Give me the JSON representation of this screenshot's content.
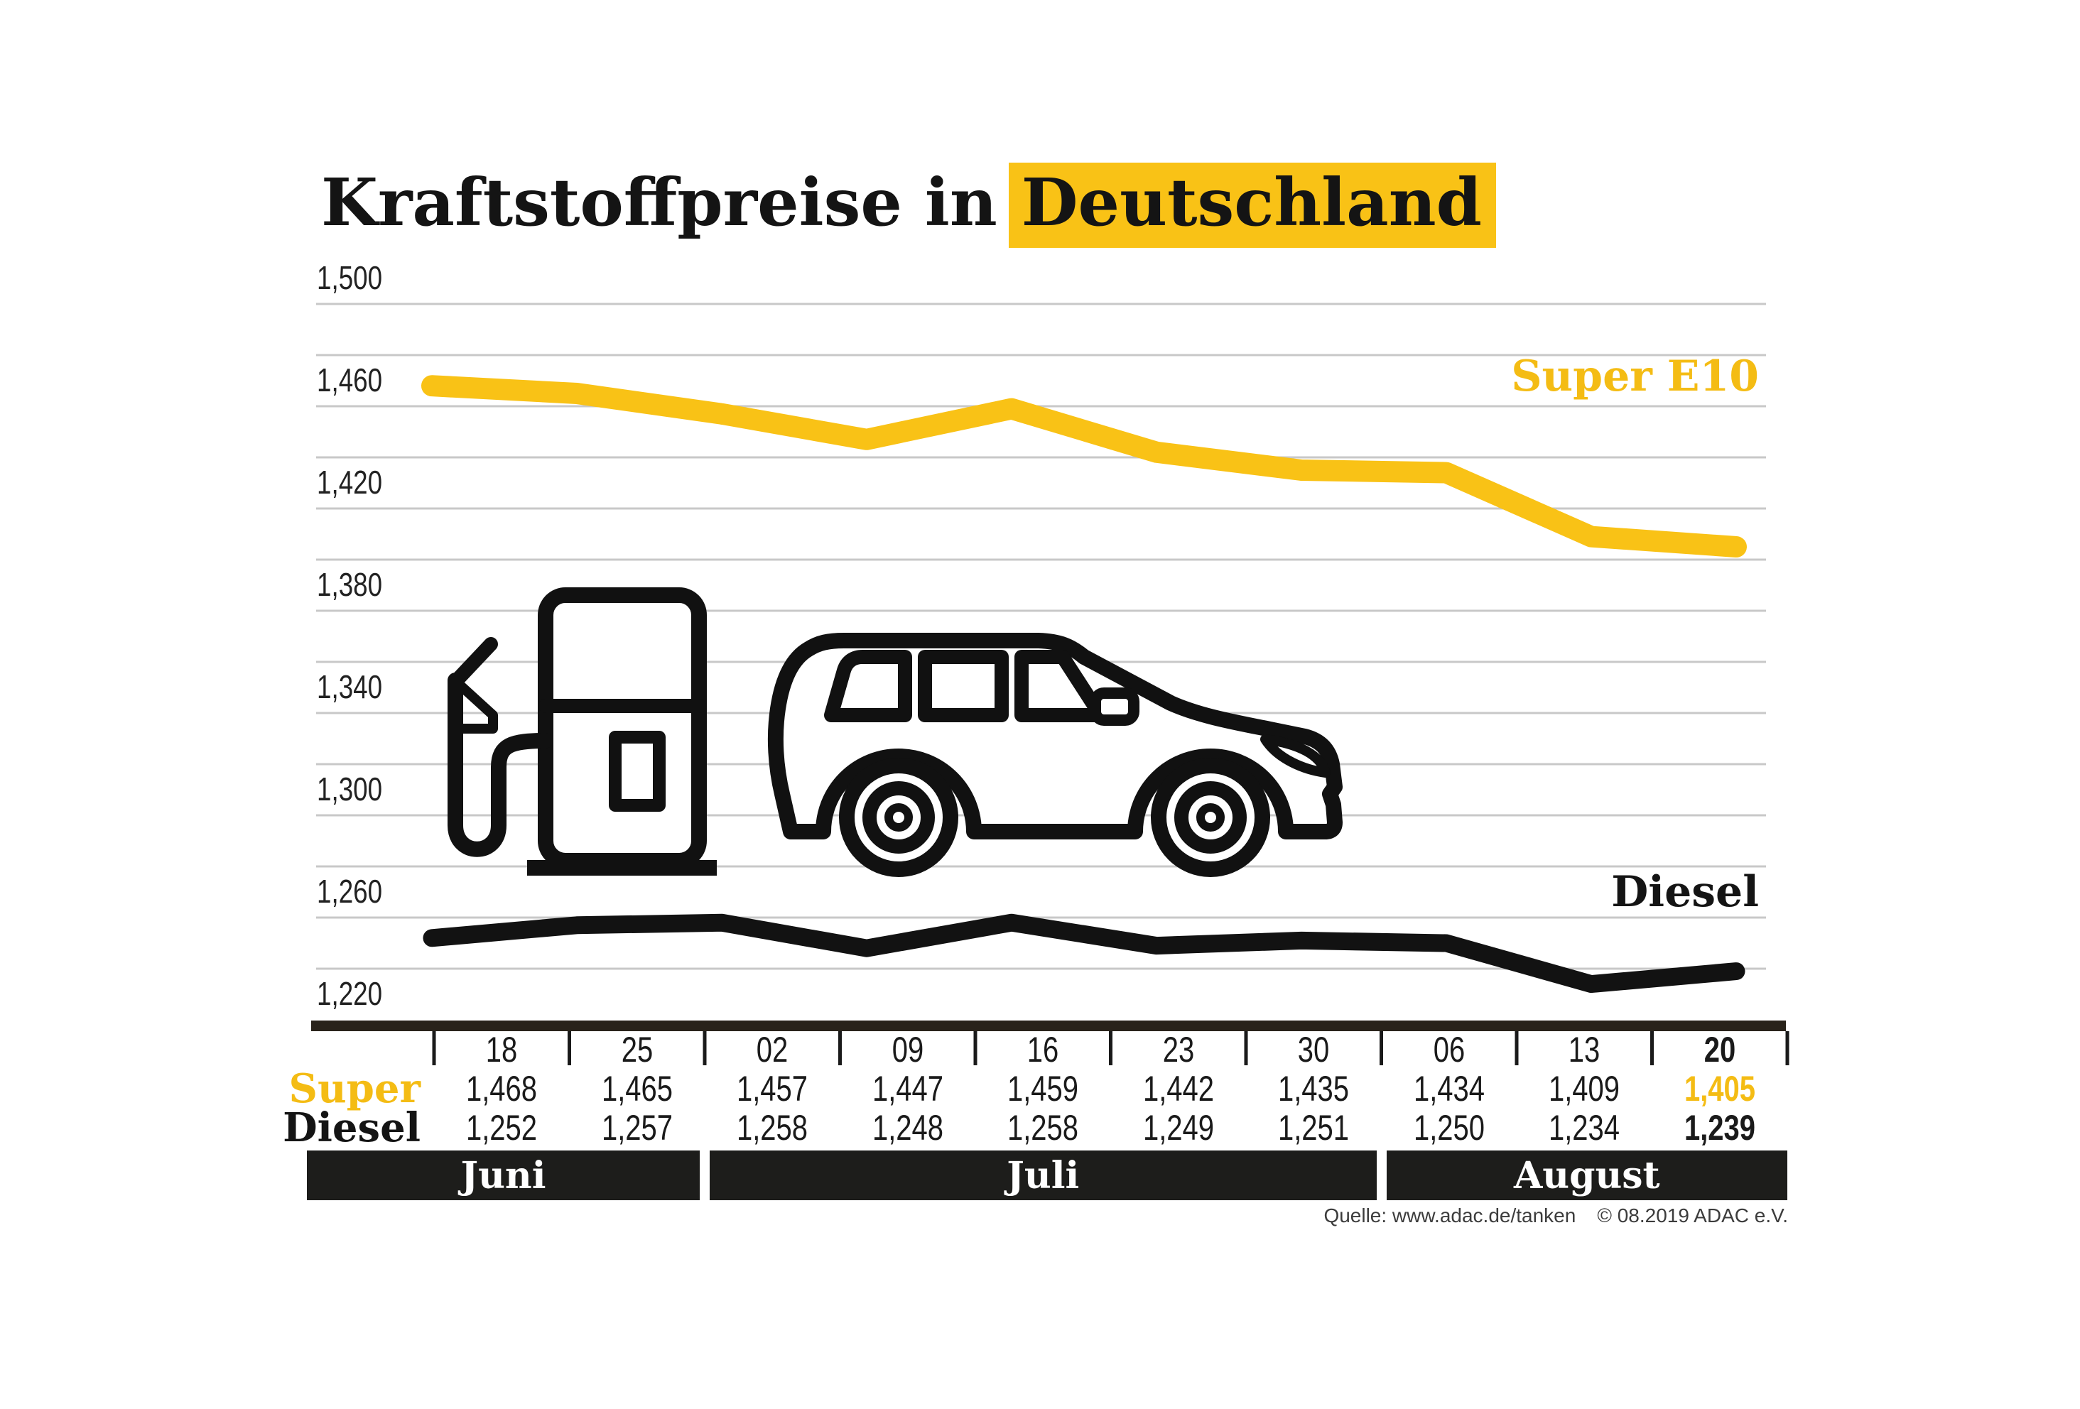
{
  "title": {
    "prefix": "Kraftstoffpreise in",
    "highlight": "Deutschland"
  },
  "legend": {
    "super": "Super E10",
    "diesel": "Diesel"
  },
  "table": {
    "dates": [
      "18",
      "25",
      "02",
      "09",
      "16",
      "23",
      "30",
      "06",
      "13",
      "20"
    ],
    "rows": [
      {
        "label": "Super",
        "values": [
          "1,468",
          "1,465",
          "1,457",
          "1,447",
          "1,459",
          "1,442",
          "1,435",
          "1,434",
          "1,409",
          "1,405"
        ]
      },
      {
        "label": "Diesel",
        "values": [
          "1,252",
          "1,257",
          "1,258",
          "1,248",
          "1,258",
          "1,249",
          "1,251",
          "1,250",
          "1,234",
          "1,239"
        ]
      }
    ]
  },
  "months": [
    {
      "label": "Juni",
      "cols": 2
    },
    {
      "label": "Juli",
      "cols": 5
    },
    {
      "label": "August",
      "cols": 3
    }
  ],
  "source": {
    "quelle": "Quelle: www.adac.de/tanken",
    "copyright": "© 08.2019  ADAC e.V."
  },
  "colors": {
    "yellow": "#F9C216",
    "yellow_text": "#F4BC14",
    "line_black": "#121212",
    "grid": "#C8C8C8",
    "axis": "#29231A",
    "band": "#1D1D1B",
    "text": "#1A1A1A"
  },
  "chart_data": {
    "type": "line",
    "title": "Kraftstoffpreise in Deutschland",
    "x": [
      "18",
      "25",
      "02",
      "09",
      "16",
      "23",
      "30",
      "06",
      "13",
      "20"
    ],
    "x_months": [
      "Juni",
      "Juni",
      "Juli",
      "Juli",
      "Juli",
      "Juli",
      "Juli",
      "August",
      "August",
      "August"
    ],
    "series": [
      {
        "name": "Super E10",
        "color": "#F9C216",
        "values": [
          1468,
          1465,
          1457,
          1447,
          1459,
          1442,
          1435,
          1434,
          1409,
          1405
        ]
      },
      {
        "name": "Diesel",
        "color": "#121212",
        "values": [
          1252,
          1257,
          1258,
          1248,
          1258,
          1249,
          1251,
          1250,
          1234,
          1239
        ]
      }
    ],
    "ylim": [
      1220,
      1500
    ],
    "ytick_step": 20,
    "ylabel_step": 40,
    "grid": "horizontal only",
    "legend_position": "inline right of plot",
    "yticks_labeled": [
      "1,220",
      "1,260",
      "1,300",
      "1,340",
      "1,380",
      "1,420",
      "1,460",
      "1,500"
    ]
  }
}
